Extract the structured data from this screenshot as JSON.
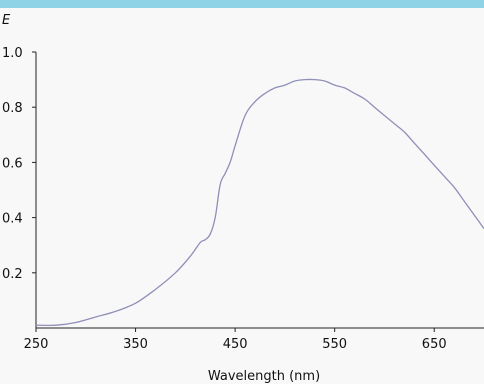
{
  "chart_data": {
    "type": "line",
    "title": "",
    "ylabel": "E",
    "xlabel": "Wavelength (nm)",
    "xlim": [
      250,
      700
    ],
    "ylim": [
      0,
      1.0
    ],
    "xticks": [
      250,
      350,
      450,
      550,
      650
    ],
    "yticks": [
      0.2,
      0.4,
      0.6,
      0.8,
      1.0
    ],
    "xtick_labels": [
      "250",
      "350",
      "450",
      "550",
      "650"
    ],
    "ytick_labels": [
      "0.2",
      "0.4",
      "0.6",
      "0.8",
      "1.0"
    ],
    "grid": false,
    "series": [
      {
        "color": "#8f8fb8",
        "x": [
          250,
          270,
          290,
          310,
          330,
          350,
          370,
          390,
          405,
          415,
          420,
          425,
          430,
          435,
          440,
          445,
          450,
          460,
          470,
          480,
          490,
          500,
          510,
          520,
          530,
          540,
          550,
          560,
          570,
          580,
          590,
          600,
          610,
          620,
          630,
          640,
          650,
          660,
          670,
          680,
          690,
          700
        ],
        "y": [
          0.01,
          0.01,
          0.02,
          0.04,
          0.06,
          0.09,
          0.14,
          0.2,
          0.26,
          0.31,
          0.32,
          0.34,
          0.4,
          0.52,
          0.56,
          0.6,
          0.66,
          0.77,
          0.82,
          0.85,
          0.87,
          0.88,
          0.895,
          0.9,
          0.9,
          0.895,
          0.88,
          0.87,
          0.85,
          0.83,
          0.8,
          0.77,
          0.74,
          0.71,
          0.67,
          0.63,
          0.59,
          0.55,
          0.51,
          0.46,
          0.41,
          0.36
        ]
      }
    ]
  }
}
